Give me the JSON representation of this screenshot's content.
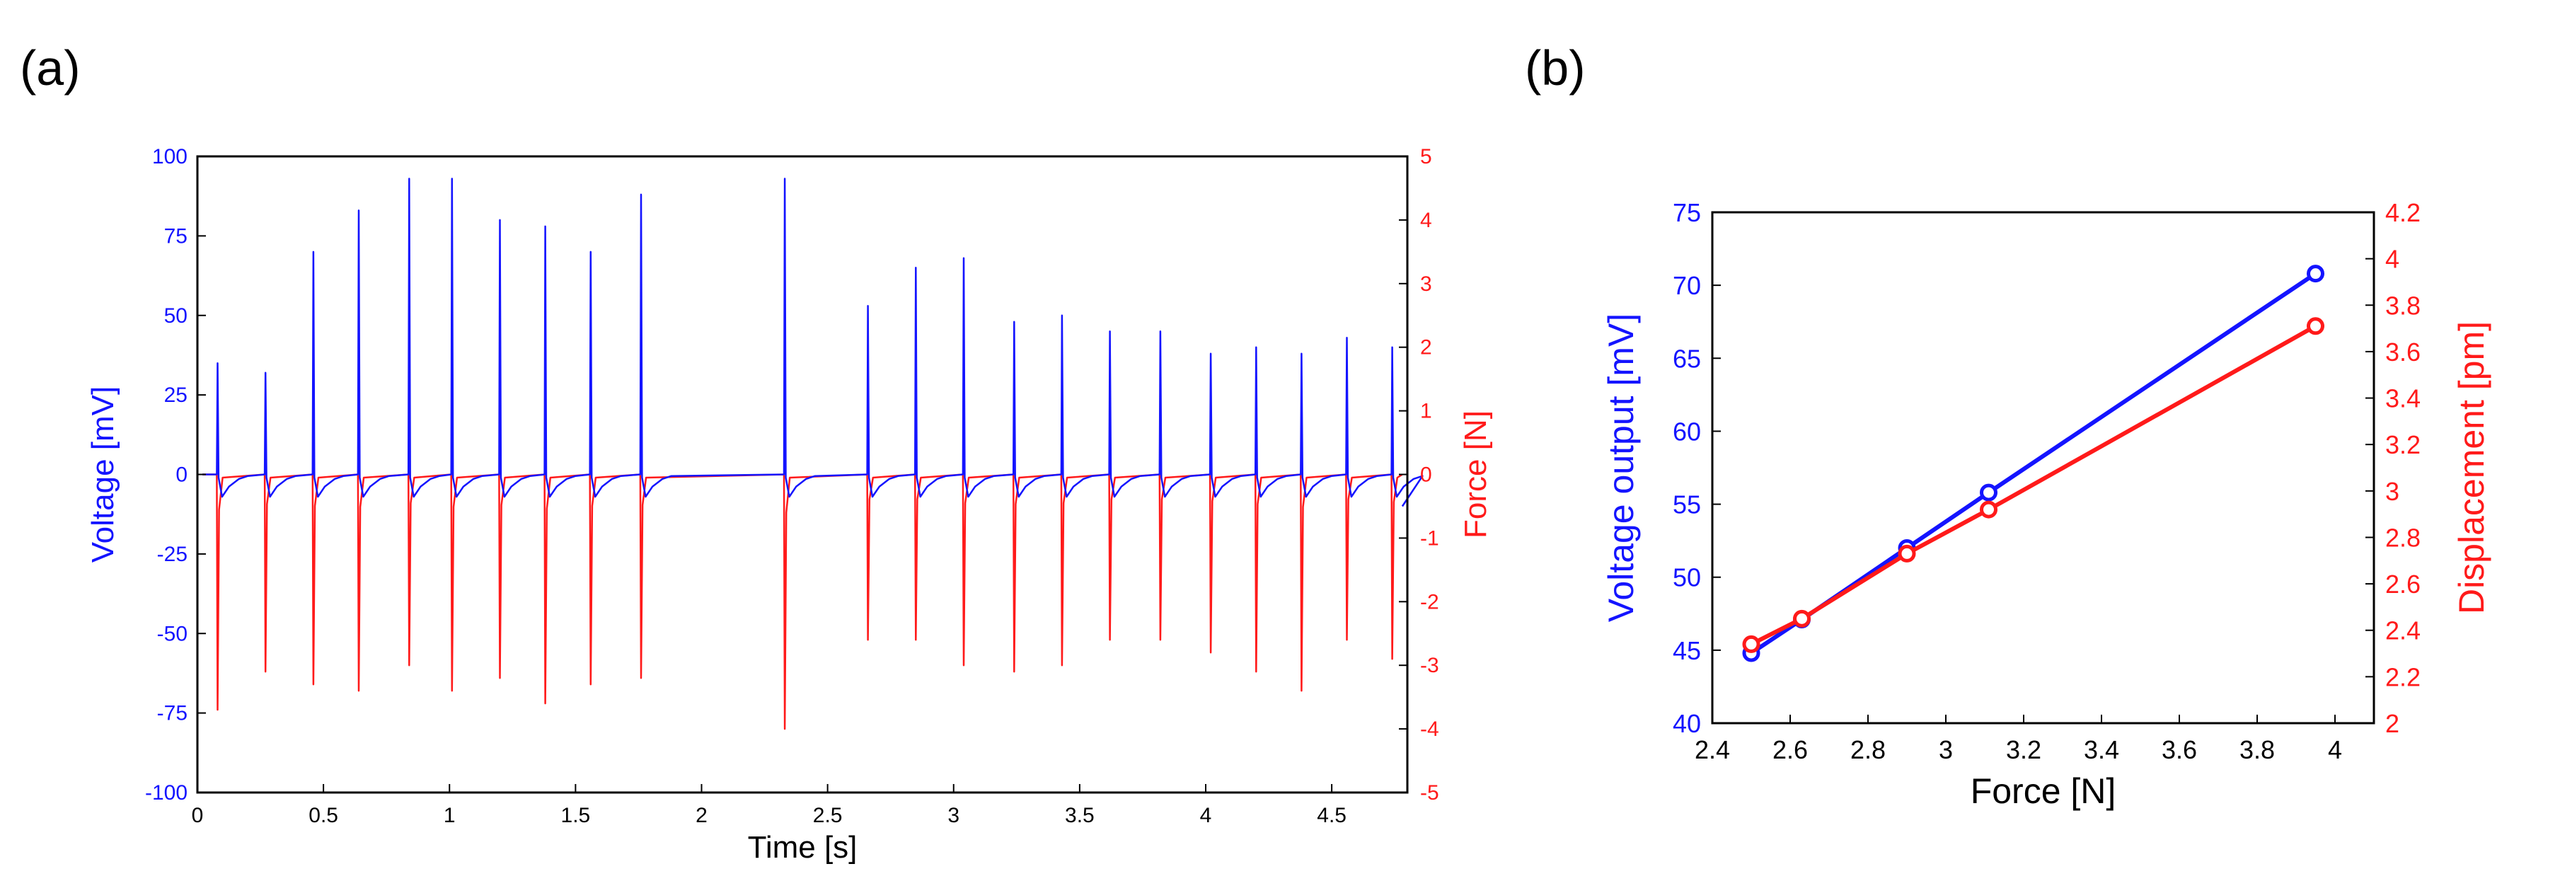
{
  "colors": {
    "voltage": "#1414ff",
    "force": "#ff1a1a",
    "axis": "#000000"
  },
  "panels": {
    "a_label": "(a)",
    "b_label": "(b)"
  },
  "chart_data": [
    {
      "id": "a",
      "type": "line",
      "xlabel": "Time [s]",
      "ylabel_left": "Voltage [mV]",
      "ylabel_right": "Force [N]",
      "xlim": [
        0,
        4.8
      ],
      "ylim_left": [
        -100,
        100
      ],
      "ylim_right": [
        -5,
        5
      ],
      "x_ticks": [
        "0",
        "0.5",
        "1",
        "1.5",
        "2",
        "2.5",
        "3",
        "3.5",
        "4",
        "4.5"
      ],
      "x_tick_values": [
        0,
        0.5,
        1,
        1.5,
        2,
        2.5,
        3,
        3.5,
        4,
        4.5
      ],
      "y_left_ticks": [
        "100",
        "75",
        "50",
        "25",
        "0",
        "-25",
        "-50",
        "-75",
        "-100"
      ],
      "y_left_tick_values": [
        100,
        75,
        50,
        25,
        0,
        -25,
        -50,
        -75,
        -100
      ],
      "y_right_ticks": [
        "5",
        "4",
        "3",
        "2",
        "1",
        "0",
        "-1",
        "-2",
        "-3",
        "-4",
        "-5"
      ],
      "y_right_tick_values": [
        5,
        4,
        3,
        2,
        1,
        0,
        -1,
        -2,
        -3,
        -4,
        -5
      ],
      "series": [
        {
          "name": "Voltage",
          "axis": "left",
          "spike_times": [
            0.08,
            0.27,
            0.46,
            0.64,
            0.84,
            1.01,
            1.2,
            1.38,
            1.56,
            1.76,
            2.33,
            2.66,
            2.85,
            3.04,
            3.24,
            3.43,
            3.62,
            3.82,
            4.02,
            4.2,
            4.38,
            4.56,
            4.74
          ],
          "spike_peaks": [
            35,
            32,
            70,
            83,
            93,
            93,
            80,
            78,
            70,
            88,
            93,
            53,
            65,
            68,
            48,
            50,
            45,
            45,
            38,
            40,
            38,
            43,
            40
          ],
          "undershoot": -7
        },
        {
          "name": "Force",
          "axis": "right",
          "spike_times": [
            0.08,
            0.27,
            0.46,
            0.64,
            0.84,
            1.01,
            1.2,
            1.38,
            1.56,
            1.76,
            2.33,
            2.66,
            2.85,
            3.04,
            3.24,
            3.43,
            3.62,
            3.82,
            4.02,
            4.2,
            4.38,
            4.56,
            4.74
          ],
          "spike_troughs": [
            -3.7,
            -3.1,
            -3.3,
            -3.4,
            -3.0,
            -3.4,
            -3.2,
            -3.6,
            -3.3,
            -3.2,
            -4.0,
            -2.6,
            -2.6,
            -3.0,
            -3.1,
            -3.0,
            -2.6,
            -2.6,
            -2.8,
            -3.1,
            -3.4,
            -2.6,
            -2.9
          ]
        }
      ]
    },
    {
      "id": "b",
      "type": "line",
      "xlabel": "Force [N]",
      "ylabel_left": "Voltage output [mV]",
      "ylabel_right": "Displacement [pm]",
      "xlim": [
        2.4,
        4.1
      ],
      "ylim_left": [
        40,
        75
      ],
      "ylim_right": [
        2,
        4.2
      ],
      "x_ticks": [
        "2.4",
        "2.6",
        "2.8",
        "3",
        "3.2",
        "3.4",
        "3.6",
        "3.8",
        "4"
      ],
      "x_tick_values": [
        2.4,
        2.6,
        2.8,
        3.0,
        3.2,
        3.4,
        3.6,
        3.8,
        4.0
      ],
      "y_left_ticks": [
        "75",
        "70",
        "65",
        "60",
        "55",
        "50",
        "45",
        "40"
      ],
      "y_left_tick_values": [
        75,
        70,
        65,
        60,
        55,
        50,
        45,
        40
      ],
      "y_right_ticks": [
        "4.2",
        "4",
        "3.8",
        "3.6",
        "3.4",
        "3.2",
        "3",
        "2.8",
        "2.6",
        "2.4",
        "2.2",
        "2"
      ],
      "y_right_tick_values": [
        4.2,
        4.0,
        3.8,
        3.6,
        3.4,
        3.2,
        3.0,
        2.8,
        2.6,
        2.4,
        2.2,
        2.0
      ],
      "series": [
        {
          "name": "Voltage output",
          "axis": "left",
          "x": [
            2.5,
            2.63,
            2.9,
            3.11,
            3.95
          ],
          "values": [
            44.8,
            47.1,
            52.0,
            55.8,
            70.8
          ]
        },
        {
          "name": "Displacement",
          "axis": "right",
          "x": [
            2.5,
            2.63,
            2.9,
            3.11,
            3.95
          ],
          "values": [
            2.34,
            2.45,
            2.73,
            2.92,
            3.71
          ]
        }
      ]
    }
  ]
}
